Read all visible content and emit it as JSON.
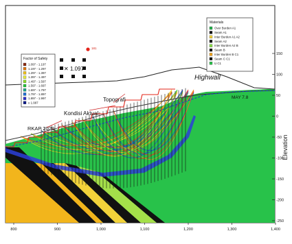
{
  "legend_fos": {
    "title": "Factor of Safety",
    "items": [
      {
        "label": "1.097 - 1.197",
        "color": "#8b2a10"
      },
      {
        "label": "1.197 - 1.297",
        "color": "#e07a10"
      },
      {
        "label": "1.297 - 1.397",
        "color": "#f2c21a"
      },
      {
        "label": "1.397 - 1.497",
        "color": "#e9ee38"
      },
      {
        "label": "1.497 - 1.597",
        "color": "#8fdc2c"
      },
      {
        "label": "1.597 - 1.697",
        "color": "#25c43a"
      },
      {
        "label": "1.697 - 1.797",
        "color": "#1ea88a"
      },
      {
        "label": "1.797 - 1.897",
        "color": "#1d6fd6"
      },
      {
        "label": "1.897 - 1.997",
        "color": "#2b2fcc"
      },
      {
        "label": "≥ 1.997",
        "color": "#0b1a8c"
      }
    ]
  },
  "legend_materials": {
    "title": "Materials",
    "items": [
      {
        "label": "Over Burden A1",
        "color": "#22b04a"
      },
      {
        "label": "Seam A1",
        "color": "#111111"
      },
      {
        "label": "Inter Burden A1 A2",
        "color": "#f2d23a"
      },
      {
        "label": "Seam A2",
        "color": "#111111"
      },
      {
        "label": "Inter Burden A2 B",
        "color": "#88dd44"
      },
      {
        "label": "Seam B",
        "color": "#111111"
      },
      {
        "label": "Inter Burden B C1",
        "color": "#f2a51c"
      },
      {
        "label": "Seam C C1",
        "color": "#111111"
      },
      {
        "label": "U C1",
        "color": "#28c24a"
      }
    ]
  },
  "labels": {
    "critical_fos": "1.097",
    "center_point": "181",
    "highwall": "Highwall",
    "topografi": "Topografi",
    "kondisi_aktual": "Kondisi Aktual",
    "rkap": "RKAP 2020",
    "may": "MAY 7.8",
    "elevation": "Elevation"
  },
  "axes": {
    "x_ticks": [
      "800",
      "900",
      "1,000",
      "1,100",
      "1,200",
      "1,300",
      "1,400"
    ],
    "y_ticks": [
      "150",
      "100",
      "50",
      "0",
      "-50",
      "-100",
      "-150",
      "-200",
      "-250"
    ]
  },
  "colors": {
    "slip_red": "#e8341f",
    "slip_orange": "#f28a1c",
    "slip_yellow": "#f2d31c",
    "slip_green": "#3ac63a",
    "slip_blue": "#2040d8"
  }
}
